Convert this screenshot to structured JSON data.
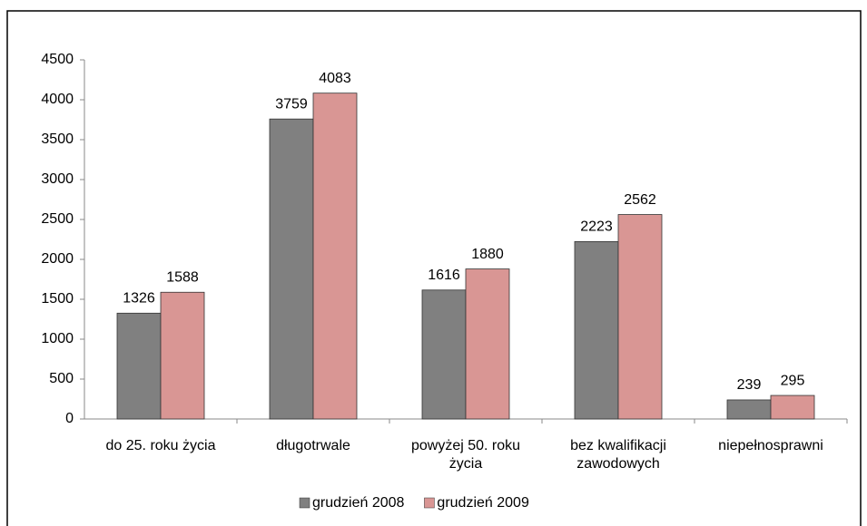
{
  "chart_data": {
    "type": "bar",
    "categories": [
      "do 25. roku życia",
      "długotrwale",
      "powyżej 50. roku życia",
      "bez kwalifikacji zawodowych",
      "niepełnosprawni"
    ],
    "series": [
      {
        "name": "grudzień 2008",
        "color": "#808080",
        "values": [
          1326,
          3759,
          1616,
          2223,
          239
        ]
      },
      {
        "name": "grudzień 2009",
        "color": "#d99694",
        "values": [
          1588,
          4083,
          1880,
          2562,
          295
        ]
      }
    ],
    "ylim": [
      0,
      4500
    ],
    "yticks": [
      0,
      500,
      1000,
      1500,
      2000,
      2500,
      3000,
      3500,
      4000,
      4500
    ],
    "legend": "bottom"
  }
}
